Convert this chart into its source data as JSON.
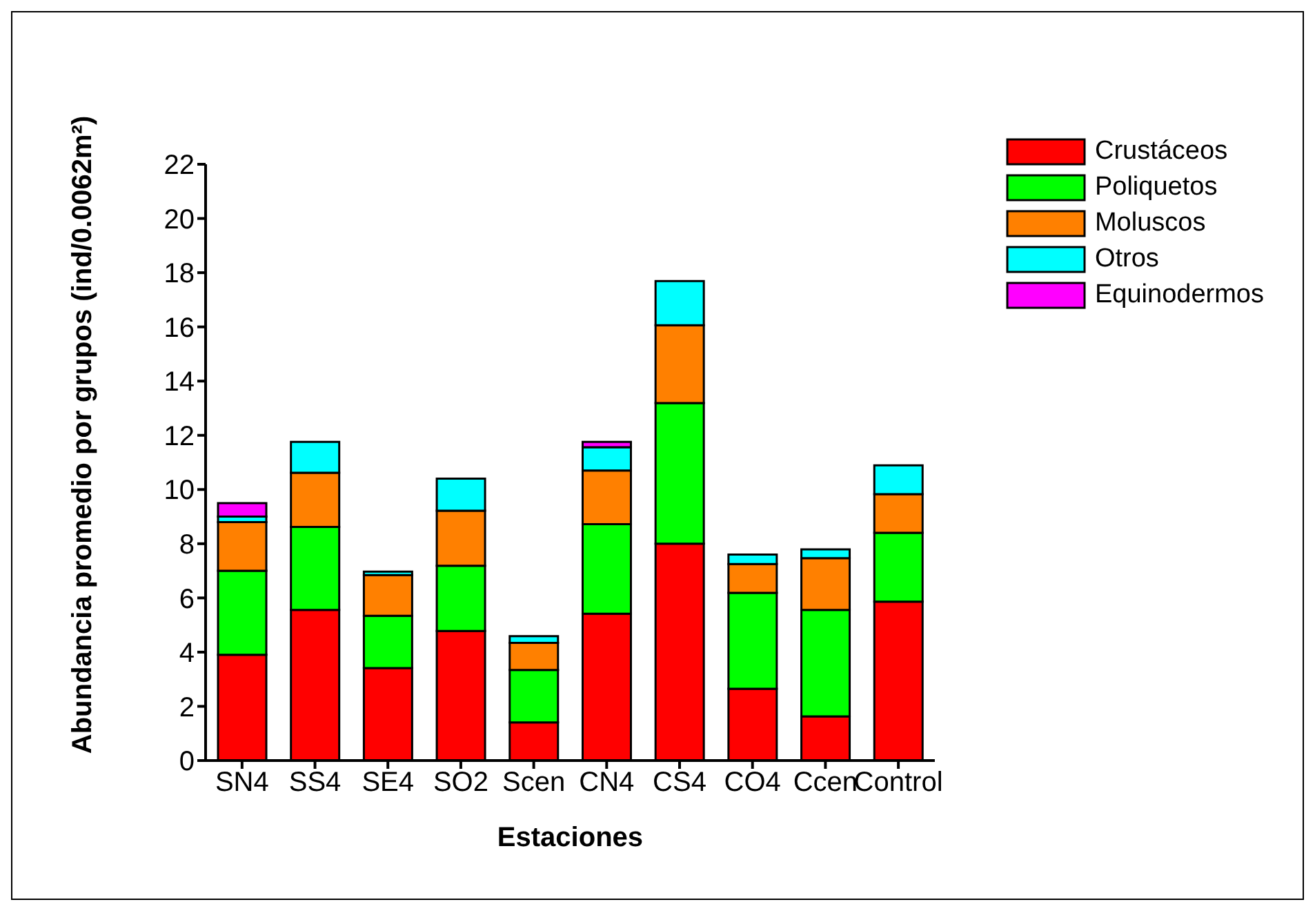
{
  "chart_data": {
    "type": "bar",
    "stacked": true,
    "xlabel": "Estaciones",
    "ylabel": "Abundancia promedio por grupos (ind/0.0062m²)",
    "categories": [
      "SN4",
      "SS4",
      "SE4",
      "SO2",
      "Scen",
      "CN4",
      "CS4",
      "CO4",
      "Ccen",
      "Control"
    ],
    "series": [
      {
        "name": "Crustáceos",
        "color": "#ff0000",
        "values": [
          3.9,
          5.56,
          3.41,
          4.78,
          1.41,
          5.42,
          8.0,
          2.65,
          1.63,
          5.86
        ]
      },
      {
        "name": "Poliquetos",
        "color": "#00ff00",
        "values": [
          3.1,
          3.06,
          1.93,
          2.41,
          1.93,
          3.3,
          5.19,
          3.54,
          3.93,
          2.54
        ]
      },
      {
        "name": "Moluscos",
        "color": "#ff8000",
        "values": [
          1.8,
          2.0,
          1.5,
          2.03,
          1.0,
          1.98,
          2.87,
          1.06,
          1.91,
          1.43
        ]
      },
      {
        "name": "Otros",
        "color": "#00ffff",
        "values": [
          0.2,
          1.14,
          0.13,
          1.18,
          0.25,
          0.86,
          1.63,
          0.35,
          0.32,
          1.06
        ]
      },
      {
        "name": "Equinodermos",
        "color": "#ff00ff",
        "values": [
          0.5,
          null,
          null,
          null,
          null,
          0.2,
          null,
          null,
          null,
          null
        ]
      }
    ],
    "ylim": [
      0,
      22
    ],
    "yticks": [
      0,
      2,
      4,
      6,
      8,
      10,
      12,
      14,
      16,
      18,
      20,
      22
    ],
    "grid": false,
    "legend": "top right"
  }
}
